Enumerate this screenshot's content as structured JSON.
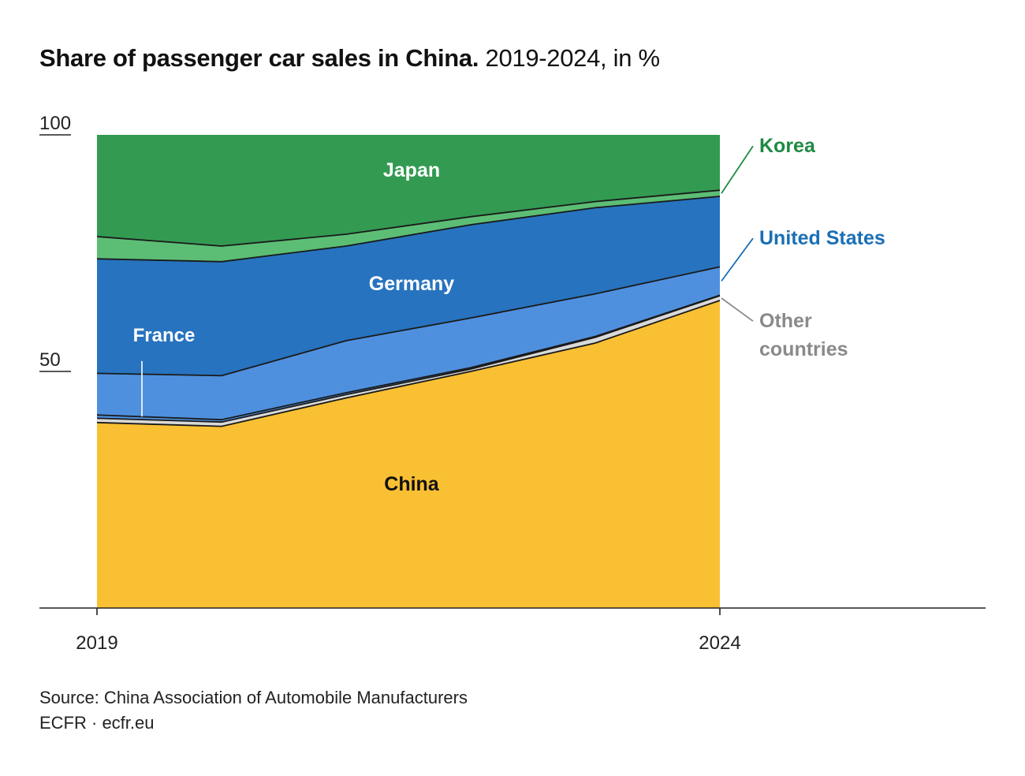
{
  "title": {
    "bold": "Share of passenger car sales in China.",
    "sub": "2019-2024, in %"
  },
  "chart_data": {
    "type": "area",
    "stacked": true,
    "x": [
      2019,
      2020,
      2021,
      2022,
      2023,
      2024
    ],
    "x_tick_labels": [
      "2019",
      "2024"
    ],
    "ylim": [
      0,
      100
    ],
    "y_ticks": [
      50,
      100
    ],
    "series": [
      {
        "name": "China",
        "values": [
          39.2,
          38.4,
          44.4,
          50.0,
          56.0,
          65.0
        ],
        "color": "#F9C034",
        "label_color": "#111111"
      },
      {
        "name": "Other countries",
        "values": [
          0.9,
          0.9,
          0.7,
          0.5,
          1.2,
          1.0
        ],
        "color": "#D9D9D9",
        "label_color": "#8A8A8A"
      },
      {
        "name": "France",
        "values": [
          0.7,
          0.5,
          0.4,
          0.3,
          0.2,
          0.1
        ],
        "color": "#4F90DE",
        "label_color": "#FFFFFF"
      },
      {
        "name": "United States",
        "values": [
          8.8,
          9.3,
          11.0,
          10.5,
          9.0,
          6.0
        ],
        "color": "#4F90DE",
        "label_color": "#1A6FB5"
      },
      {
        "name": "Germany",
        "values": [
          24.2,
          24.1,
          20.0,
          19.7,
          18.2,
          14.9
        ],
        "color": "#2773BF",
        "label_color": "#FFFFFF"
      },
      {
        "name": "Korea",
        "values": [
          4.7,
          3.3,
          2.5,
          1.7,
          1.3,
          1.3
        ],
        "color": "#5CBE75",
        "label_color": "#1E8A44"
      },
      {
        "name": "Japan",
        "values": [
          21.5,
          23.5,
          21.0,
          17.3,
          14.1,
          11.7
        ],
        "color": "#339A52",
        "label_color": "#FFFFFF"
      }
    ],
    "inline_labels": [
      "Japan",
      "Germany",
      "France",
      "China"
    ],
    "side_labels": [
      "Korea",
      "United States",
      "Other countries"
    ],
    "other_countries_lines": [
      "Other",
      "countries"
    ]
  },
  "footer": {
    "source": "Source: China Association of Automobile Manufacturers",
    "publisher": "ECFR · ecfr.eu"
  }
}
